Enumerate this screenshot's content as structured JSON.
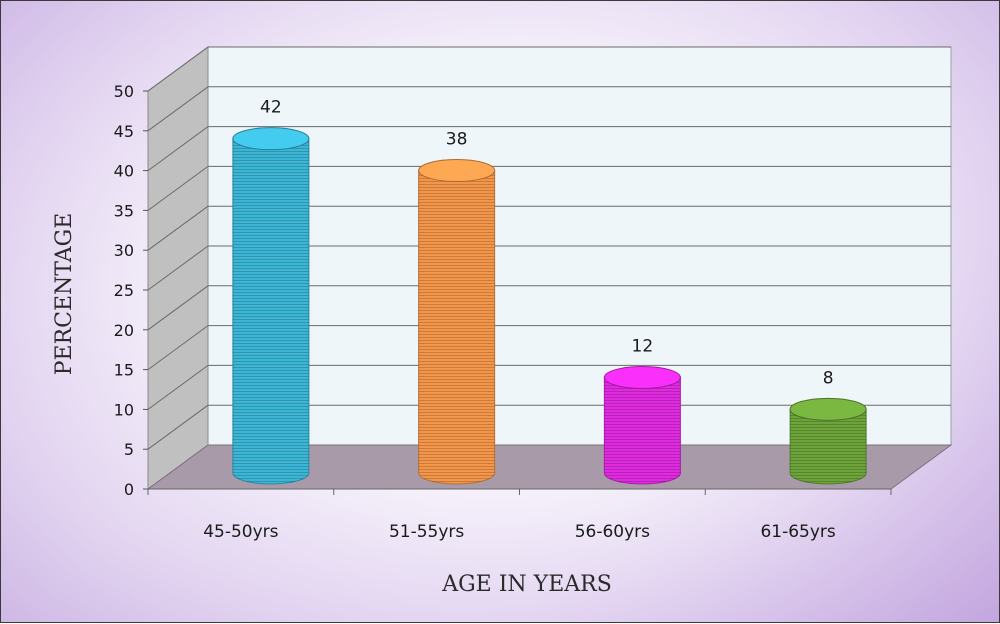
{
  "chart_data": {
    "type": "bar",
    "style": "3d-cylinder",
    "categories": [
      "45-50yrs",
      "51-55yrs",
      "56-60yrs",
      "61-65yrs"
    ],
    "values": [
      42,
      38,
      12,
      8
    ],
    "data_labels": [
      "42",
      "38",
      "12",
      "8"
    ],
    "bar_colors": [
      "#3cb6d6",
      "#f4964a",
      "#e02ae0",
      "#6da43a"
    ],
    "xlabel": "AGE IN YEARS",
    "ylabel": "PERCENTAGE",
    "ylim": [
      0,
      50
    ],
    "yticks": [
      0,
      5,
      10,
      15,
      20,
      25,
      30,
      35,
      40,
      45,
      50
    ],
    "grid": true,
    "legend": "none"
  },
  "colors": {
    "wall": "#eef6f9",
    "side_wall": "#c0c0c0",
    "floor": "#a89aa8",
    "gridline": "#6a6a6a"
  }
}
